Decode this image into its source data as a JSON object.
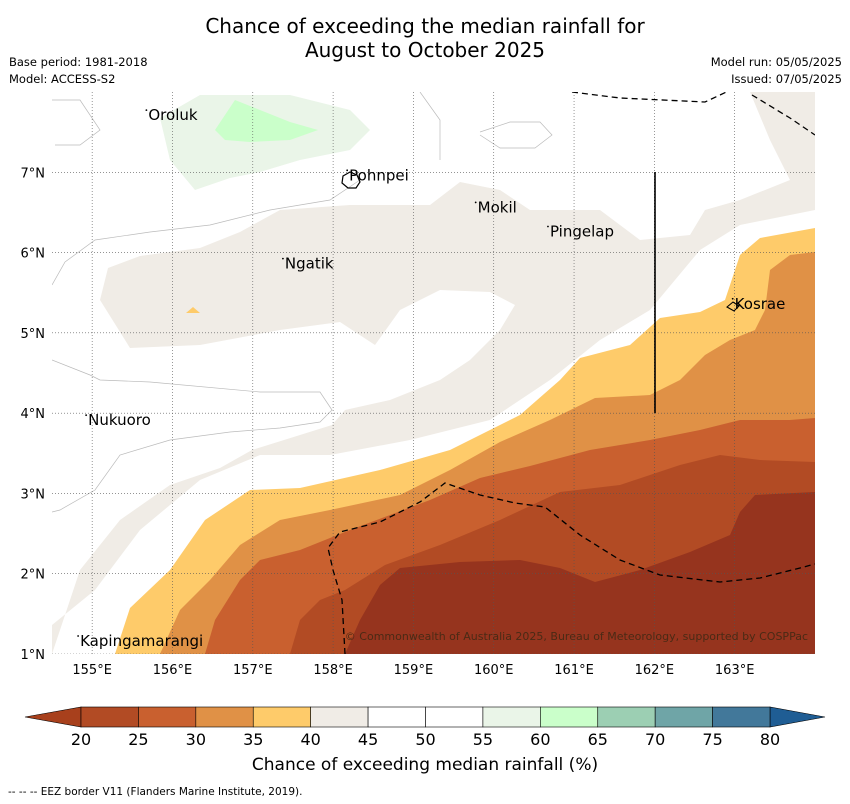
{
  "title": {
    "line1": "Chance of exceeding the median rainfall for",
    "line2": "August to October 2025"
  },
  "meta_left": {
    "base_period": "Base period: 1981-2018",
    "model": "Model: ACCESS-S2"
  },
  "meta_right": {
    "model_run": "Model run: 05/05/2025",
    "issued": "Issued: 07/05/2025"
  },
  "axes": {
    "lon_ticks": [
      "155°E",
      "156°E",
      "157°E",
      "158°E",
      "159°E",
      "160°E",
      "161°E",
      "162°E",
      "163°E"
    ],
    "lat_ticks": [
      "1°N",
      "2°N",
      "3°N",
      "4°N",
      "5°N",
      "6°N",
      "7°N"
    ],
    "lon_range": [
      154.5,
      164.0
    ],
    "lat_range": [
      1.0,
      8.0
    ],
    "grid": true
  },
  "places": [
    {
      "name": "Oroluk",
      "lon": 155.7,
      "lat": 7.65
    },
    {
      "name": "Pohnpei",
      "lon": 158.2,
      "lat": 6.9
    },
    {
      "name": "Mokil",
      "lon": 159.8,
      "lat": 6.5
    },
    {
      "name": "Pingelap",
      "lon": 160.7,
      "lat": 6.2
    },
    {
      "name": "Ngatik",
      "lon": 157.4,
      "lat": 5.8
    },
    {
      "name": "Kosrae",
      "lon": 163.0,
      "lat": 5.3
    },
    {
      "name": "Nukuoro",
      "lon": 154.95,
      "lat": 3.85
    },
    {
      "name": "Kapingamarangi",
      "lon": 154.85,
      "lat": 1.1
    }
  ],
  "copyright": "© Commonwealth of Australia 2025, Bureau of Meteorology, supported by COSPPac",
  "colorbar": {
    "label": "Chance of exceeding median rainfall (%)",
    "ticks": [
      "20",
      "25",
      "30",
      "35",
      "40",
      "45",
      "50",
      "55",
      "60",
      "65",
      "70",
      "75",
      "80"
    ],
    "colors": {
      "below20": "#a8401c",
      "20_25": "#b24b24",
      "25_30": "#c9602f",
      "30_35": "#e09146",
      "35_40": "#fecb6a",
      "40_45": "#f0ece6",
      "45_50": "#ffffff",
      "50_55": "#ffffff",
      "55_60": "#eaf5e8",
      "60_65": "#caffca",
      "65_70": "#9ccfb3",
      "70_75": "#6fa5a7",
      "75_80": "#42789a",
      "above80": "#1f5d94",
      "darkest_map": "#96341e"
    }
  },
  "footnote": "-- -- -- EEZ border V11 (Flanders Marine Institute, 2019)."
}
